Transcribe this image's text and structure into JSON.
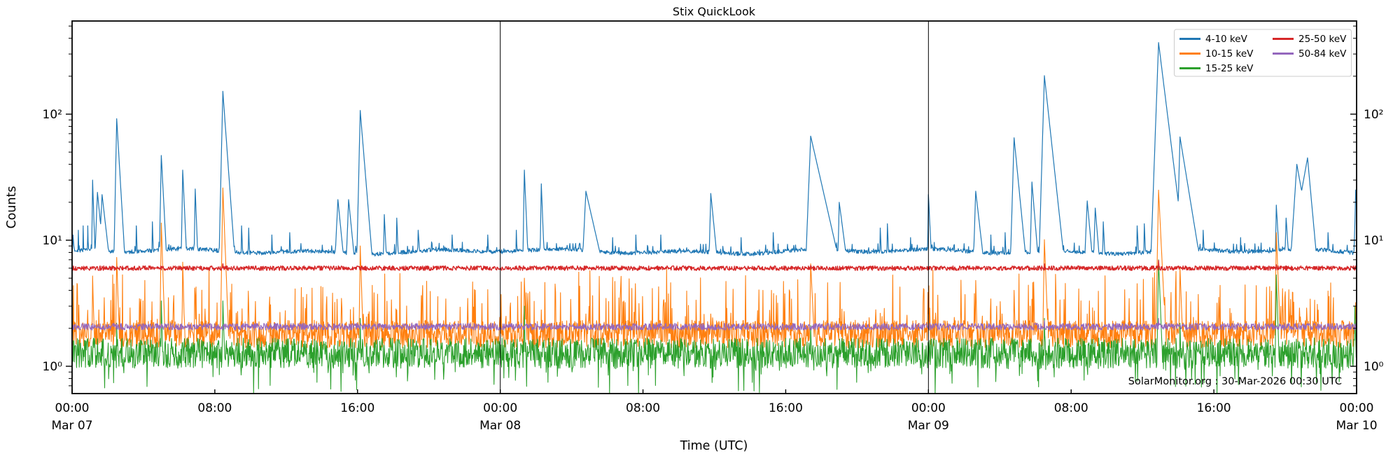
{
  "chart_data": {
    "type": "line",
    "title": "Stix QuickLook",
    "xlabel": "Time (UTC)",
    "ylabel": "Counts",
    "yscale": "log",
    "ylim": [
      0.6,
      548
    ],
    "x_range_hours": [
      0,
      72
    ],
    "x_epoch": "Mar 07 00:00 UTC",
    "grid": false,
    "legend_position": "upper right",
    "watermark": "SolarMonitor.org : 30-Mar-2026 00:30 UTC",
    "frame_color": "#000000",
    "background_color": "#ffffff",
    "day_lines_hours": [
      24,
      48
    ],
    "y_ticks": [
      {
        "v": 100,
        "label": "10²"
      },
      {
        "v": 10,
        "label": "10¹"
      },
      {
        "v": 1,
        "label": "10⁰"
      }
    ],
    "x_ticks": [
      {
        "t": 0,
        "label": "00:00",
        "day": "Mar 07"
      },
      {
        "t": 8,
        "label": "08:00"
      },
      {
        "t": 16,
        "label": "16:00"
      },
      {
        "t": 24,
        "label": "00:00",
        "day": "Mar 08"
      },
      {
        "t": 32,
        "label": "08:00"
      },
      {
        "t": 40,
        "label": "16:00"
      },
      {
        "t": 48,
        "label": "00:00",
        "day": "Mar 09"
      },
      {
        "t": 56,
        "label": "08:00"
      },
      {
        "t": 64,
        "label": "16:00"
      },
      {
        "t": 72,
        "label": "00:00",
        "day": "Mar 10"
      }
    ],
    "legend_columns": [
      [
        0,
        1,
        2
      ],
      [
        3,
        4
      ]
    ],
    "series": [
      {
        "name": "4-10 keV",
        "color": "#1f77b4",
        "width": 1.2,
        "baseline": 8.15,
        "noise": {
          "sigma": 0.016,
          "spike_p": 0.05,
          "spike_amp": 0.06,
          "dip_p": 0,
          "dip_amp": 0
        },
        "peaks": [
          [
            0.05,
            11,
            0.01,
            0.25
          ],
          [
            0.35,
            12,
            0.03,
            0.07
          ],
          [
            0.62,
            13,
            0.03,
            0.07
          ],
          [
            0.88,
            13,
            0.03,
            0.07
          ],
          [
            1.15,
            30,
            0.04,
            0.1
          ],
          [
            1.42,
            24,
            0.12,
            0.3
          ],
          [
            1.68,
            23,
            0.15,
            0.35
          ],
          [
            2.5,
            92,
            0.06,
            0.18
          ],
          [
            3.6,
            13,
            0.04,
            0.1
          ],
          [
            4.5,
            14,
            0.04,
            0.1
          ],
          [
            5.0,
            47,
            0.06,
            0.16
          ],
          [
            6.2,
            36,
            0.05,
            0.14
          ],
          [
            6.9,
            25.5,
            0.05,
            0.12
          ],
          [
            8.45,
            152,
            0.07,
            0.22
          ],
          [
            9.5,
            13,
            0.05,
            0.12
          ],
          [
            9.9,
            12.5,
            0.04,
            0.1
          ],
          [
            11.2,
            11,
            0.04,
            0.1
          ],
          [
            12.2,
            11.5,
            0.05,
            0.12
          ],
          [
            14.9,
            21,
            0.15,
            0.3
          ],
          [
            15.5,
            21,
            0.12,
            0.3
          ],
          [
            16.15,
            107,
            0.07,
            0.25
          ],
          [
            17.5,
            16,
            0.06,
            0.15
          ],
          [
            18.2,
            15,
            0.05,
            0.12
          ],
          [
            19.4,
            12,
            0.08,
            0.2
          ],
          [
            21.3,
            11,
            0.06,
            0.15
          ],
          [
            23.3,
            11,
            0.05,
            0.12
          ],
          [
            24.9,
            12,
            0.04,
            0.1
          ],
          [
            25.35,
            36,
            0.05,
            0.13
          ],
          [
            26.3,
            28,
            0.05,
            0.12
          ],
          [
            28.8,
            24.5,
            0.15,
            0.7
          ],
          [
            30.3,
            10.5,
            0.05,
            0.1
          ],
          [
            31.6,
            11,
            0.06,
            0.12
          ],
          [
            33.0,
            11,
            0.05,
            0.1
          ],
          [
            35.8,
            23.5,
            0.08,
            0.3
          ],
          [
            37.5,
            10.5,
            0.05,
            0.12
          ],
          [
            39.3,
            11.5,
            0.06,
            0.15
          ],
          [
            41.4,
            67,
            0.12,
            0.7
          ],
          [
            43.0,
            20,
            0.07,
            0.4
          ],
          [
            45.3,
            12.5,
            0.05,
            0.12
          ],
          [
            45.7,
            13.5,
            0.05,
            0.12
          ],
          [
            47.0,
            10.5,
            0.05,
            0.1
          ],
          [
            48.0,
            23,
            0.04,
            0.15
          ],
          [
            50.65,
            24.5,
            0.1,
            0.35
          ],
          [
            51.5,
            11,
            0.05,
            0.1
          ],
          [
            52.3,
            11.5,
            0.05,
            0.1
          ],
          [
            52.8,
            65,
            0.09,
            0.3
          ],
          [
            53.8,
            29,
            0.07,
            0.25
          ],
          [
            54.5,
            202,
            0.09,
            0.33
          ],
          [
            56.9,
            20.5,
            0.13,
            0.28
          ],
          [
            57.35,
            18,
            0.1,
            0.25
          ],
          [
            57.8,
            14,
            0.06,
            0.15
          ],
          [
            59.7,
            13,
            0.06,
            0.15
          ],
          [
            60.1,
            13.5,
            0.05,
            0.12
          ],
          [
            60.9,
            370,
            0.11,
            0.38
          ],
          [
            62.1,
            66,
            0.08,
            0.5
          ],
          [
            63.4,
            12,
            0.05,
            0.12
          ],
          [
            65.5,
            10.5,
            0.05,
            0.1
          ],
          [
            67.5,
            19,
            0.06,
            0.18
          ],
          [
            68.05,
            15,
            0.1,
            0.2
          ],
          [
            68.65,
            40,
            0.2,
            0.55
          ],
          [
            69.25,
            45,
            0.55,
            0.28
          ],
          [
            70.4,
            11.5,
            0.06,
            0.15
          ],
          [
            71.95,
            25,
            0.08,
            0.3
          ]
        ]
      },
      {
        "name": "10-15 keV",
        "color": "#ff7f0e",
        "width": 1.1,
        "baseline": 1.8,
        "noise": {
          "sigma": 0.11,
          "spike_p": 0.1,
          "spike_amp": 0.43,
          "dip_p": 0,
          "dip_amp": 0
        },
        "peaks": [
          [
            1.15,
            5.2,
            0.03,
            0.08
          ],
          [
            1.5,
            2.8,
            0.03,
            0.06
          ],
          [
            1.8,
            3.5,
            0.03,
            0.06
          ],
          [
            2.5,
            7.3,
            0.04,
            0.1
          ],
          [
            3.85,
            3.4,
            0.03,
            0.06
          ],
          [
            5.0,
            13.7,
            0.04,
            0.1
          ],
          [
            6.2,
            6.7,
            0.03,
            0.08
          ],
          [
            6.9,
            3.6,
            0.03,
            0.06
          ],
          [
            8.45,
            26,
            0.05,
            0.12
          ],
          [
            9.9,
            3.0,
            0.03,
            0.06
          ],
          [
            12.5,
            2.8,
            0.03,
            0.06
          ],
          [
            14.85,
            3.4,
            0.03,
            0.06
          ],
          [
            16.15,
            9,
            0.04,
            0.1
          ],
          [
            16.6,
            2.6,
            0.03,
            0.05
          ],
          [
            18.2,
            2.8,
            0.03,
            0.06
          ],
          [
            20.5,
            2.5,
            0.03,
            0.05
          ],
          [
            25.35,
            5.0,
            0.04,
            0.1
          ],
          [
            26.3,
            2.8,
            0.03,
            0.06
          ],
          [
            28.8,
            2.6,
            0.03,
            0.08
          ],
          [
            35.8,
            2.6,
            0.03,
            0.08
          ],
          [
            41.4,
            6.5,
            0.05,
            0.15
          ],
          [
            43.0,
            2.4,
            0.03,
            0.06
          ],
          [
            48.0,
            2.6,
            0.03,
            0.08
          ],
          [
            50.65,
            4.8,
            0.03,
            0.08
          ],
          [
            52.8,
            4.0,
            0.04,
            0.08
          ],
          [
            53.8,
            3.4,
            0.03,
            0.06
          ],
          [
            54.5,
            10.1,
            0.05,
            0.12
          ],
          [
            56.9,
            2.6,
            0.03,
            0.06
          ],
          [
            60.9,
            25,
            0.06,
            0.15
          ],
          [
            62.1,
            6.0,
            0.04,
            0.12
          ],
          [
            64.3,
            2.5,
            0.03,
            0.06
          ],
          [
            67.5,
            11.5,
            0.04,
            0.12
          ],
          [
            68.4,
            2.8,
            0.06,
            0.1
          ],
          [
            68.8,
            2.9,
            0.06,
            0.1
          ],
          [
            69.2,
            2.9,
            0.06,
            0.12
          ],
          [
            69.8,
            3.1,
            0.03,
            0.08
          ],
          [
            71.95,
            3.2,
            0.05,
            0.1
          ]
        ]
      },
      {
        "name": "15-25 keV",
        "color": "#2ca02c",
        "width": 1.1,
        "baseline": 1.27,
        "noise": {
          "sigma": 0.12,
          "spike_p": 0,
          "spike_amp": 0,
          "dip_p": 0.06,
          "dip_amp": 0.25
        },
        "peaks": [
          [
            2.5,
            2.2,
            0.03,
            0.06
          ],
          [
            5.0,
            3.3,
            0.03,
            0.08
          ],
          [
            8.45,
            3.3,
            0.04,
            0.1
          ],
          [
            16.15,
            2.4,
            0.03,
            0.06
          ],
          [
            25.35,
            3.0,
            0.03,
            0.06
          ],
          [
            41.4,
            2.1,
            0.03,
            0.08
          ],
          [
            54.5,
            2.4,
            0.03,
            0.08
          ],
          [
            60.9,
            7.0,
            0.05,
            0.12
          ],
          [
            62.1,
            2.2,
            0.03,
            0.08
          ],
          [
            67.5,
            5.3,
            0.04,
            0.1
          ],
          [
            71.9,
            3.0,
            0.04,
            0.08
          ]
        ]
      },
      {
        "name": "25-50 keV",
        "color": "#d62728",
        "width": 1.4,
        "baseline": 6.0,
        "noise": {
          "sigma": 0.018,
          "spike_p": 0,
          "spike_amp": 0,
          "dip_p": 0,
          "dip_amp": 0
        },
        "peaks": [
          [
            8.45,
            6.5,
            0.06,
            0.15
          ],
          [
            41.4,
            6.3,
            0.08,
            0.2
          ],
          [
            54.5,
            6.5,
            0.08,
            0.2
          ],
          [
            60.9,
            6.9,
            0.08,
            0.25
          ],
          [
            67.5,
            6.4,
            0.04,
            0.1
          ]
        ]
      },
      {
        "name": "50-84 keV",
        "color": "#9467bd",
        "width": 1.1,
        "baseline": 2.06,
        "noise": {
          "sigma": 0.027,
          "spike_p": 0,
          "spike_amp": 0,
          "dip_p": 0,
          "dip_amp": 0
        },
        "peaks": [
          [
            54.5,
            2.3,
            0.06,
            0.15
          ],
          [
            60.9,
            2.4,
            0.08,
            0.2
          ]
        ]
      }
    ]
  }
}
